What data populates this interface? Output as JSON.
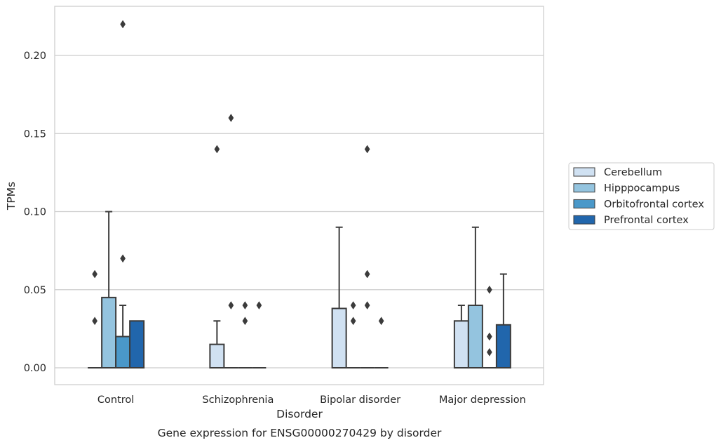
{
  "chart_data": {
    "type": "box",
    "xlabel": "Disorder",
    "ylabel": "TPMs",
    "caption": "Gene expression for ENSG00000270429 by disorder",
    "categories": [
      "Control",
      "Schizophrenia",
      "Bipolar disorder",
      "Major depression"
    ],
    "ylim": [
      -0.01,
      0.23
    ],
    "yticks": [
      0.0,
      0.05,
      0.1,
      0.15,
      0.2
    ],
    "ytick_labels": [
      "0.00",
      "0.05",
      "0.10",
      "0.15",
      "0.20"
    ],
    "grid": "horizontal",
    "legend_position": "outside-right",
    "series": [
      {
        "name": "Cerebellum",
        "color": "#d0e1f2",
        "boxes": [
          {
            "q1": 0.0,
            "median": 0.0,
            "q3": 0.0,
            "whisker_low": 0.0,
            "whisker_high": 0.0,
            "outliers": [
              0.03,
              0.06
            ]
          },
          {
            "q1": 0.0,
            "median": 0.0,
            "q3": 0.015,
            "whisker_low": 0.0,
            "whisker_high": 0.03,
            "outliers": [
              0.14
            ]
          },
          {
            "q1": 0.0,
            "median": 0.0,
            "q3": 0.038,
            "whisker_low": 0.0,
            "whisker_high": 0.09,
            "outliers": []
          },
          {
            "q1": 0.0,
            "median": 0.0,
            "q3": 0.03,
            "whisker_low": 0.0,
            "whisker_high": 0.04,
            "outliers": []
          }
        ]
      },
      {
        "name": "Hipppocampus",
        "color": "#94c4df",
        "boxes": [
          {
            "q1": 0.0,
            "median": 0.0,
            "q3": 0.045,
            "whisker_low": 0.0,
            "whisker_high": 0.1,
            "outliers": []
          },
          {
            "q1": 0.0,
            "median": 0.0,
            "q3": 0.0,
            "whisker_low": 0.0,
            "whisker_high": 0.0,
            "outliers": [
              0.04,
              0.16
            ]
          },
          {
            "q1": 0.0,
            "median": 0.0,
            "q3": 0.0,
            "whisker_low": 0.0,
            "whisker_high": 0.0,
            "outliers": [
              0.03,
              0.04
            ]
          },
          {
            "q1": 0.0,
            "median": 0.0,
            "q3": 0.04,
            "whisker_low": 0.0,
            "whisker_high": 0.09,
            "outliers": []
          }
        ]
      },
      {
        "name": "Orbitofrontal cortex",
        "color": "#4a98c9",
        "boxes": [
          {
            "q1": 0.0,
            "median": 0.0,
            "q3": 0.02,
            "whisker_low": 0.0,
            "whisker_high": 0.04,
            "outliers": [
              0.07,
              0.22
            ]
          },
          {
            "q1": 0.0,
            "median": 0.0,
            "q3": 0.0,
            "whisker_low": 0.0,
            "whisker_high": 0.0,
            "outliers": [
              0.03,
              0.04
            ]
          },
          {
            "q1": 0.0,
            "median": 0.0,
            "q3": 0.0,
            "whisker_low": 0.0,
            "whisker_high": 0.0,
            "outliers": [
              0.04,
              0.06,
              0.14
            ]
          },
          {
            "q1": 0.0,
            "median": 0.0,
            "q3": 0.0,
            "whisker_low": 0.0,
            "whisker_high": 0.0,
            "outliers": [
              0.01,
              0.02,
              0.05
            ]
          }
        ]
      },
      {
        "name": "Prefrontal cortex",
        "color": "#2166ac",
        "boxes": [
          {
            "q1": 0.0,
            "median": 0.0,
            "q3": 0.03,
            "whisker_low": 0.0,
            "whisker_high": 0.03,
            "outliers": []
          },
          {
            "q1": 0.0,
            "median": 0.0,
            "q3": 0.0,
            "whisker_low": 0.0,
            "whisker_high": 0.0,
            "outliers": [
              0.04
            ]
          },
          {
            "q1": 0.0,
            "median": 0.0,
            "q3": 0.0,
            "whisker_low": 0.0,
            "whisker_high": 0.0,
            "outliers": [
              0.03
            ]
          },
          {
            "q1": 0.0,
            "median": 0.0,
            "q3": 0.0275,
            "whisker_low": 0.0,
            "whisker_high": 0.06,
            "outliers": []
          }
        ]
      }
    ]
  }
}
